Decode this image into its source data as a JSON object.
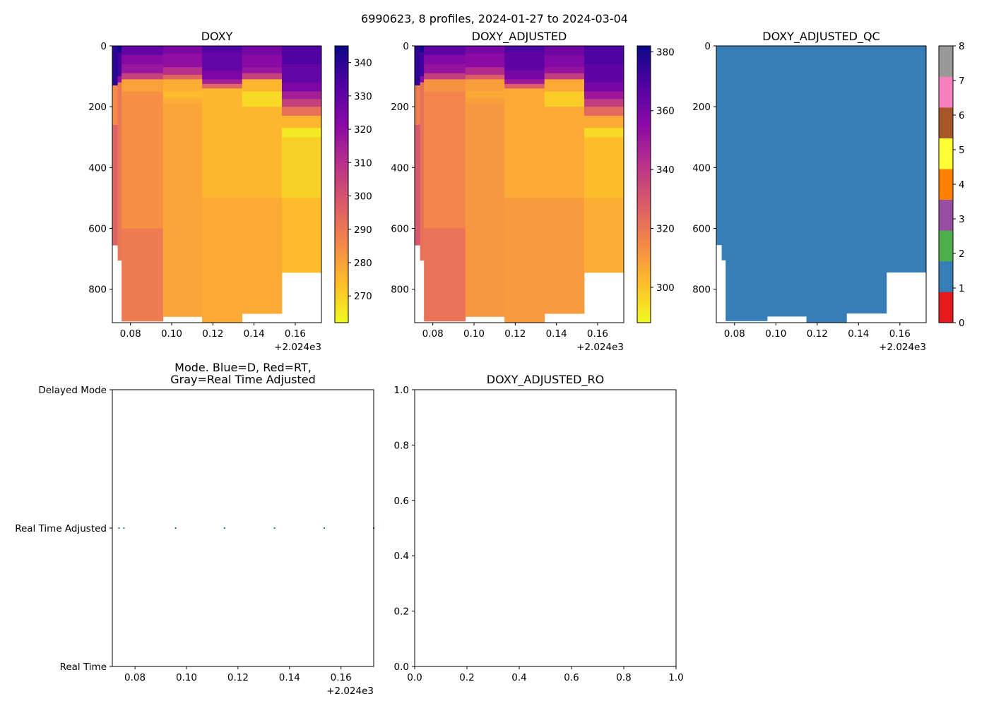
{
  "suptitle": "6990623, 8 profiles, 2024-01-27 to 2024-03-04",
  "chart_data": [
    {
      "type": "heatmap",
      "title": "DOXY",
      "x_offset_label": "+2.024e3",
      "xlim": [
        0.0712,
        0.1727
      ],
      "ylim": [
        910,
        0
      ],
      "x_ticks": [
        "0.08",
        "0.10",
        "0.12",
        "0.14",
        "0.16"
      ],
      "y_ticks": [
        "0",
        "200",
        "400",
        "600",
        "800"
      ],
      "colormap": "plasma_r",
      "clim": [
        262,
        345
      ],
      "colorbar_ticks": [
        "270",
        "280",
        "290",
        "300",
        "310",
        "320",
        "330",
        "340"
      ],
      "colorbar_tick_values": [
        270,
        280,
        290,
        300,
        310,
        320,
        330,
        340
      ],
      "profiles": [
        {
          "x": [
            0.0712,
            0.0738
          ],
          "max_depth": 655,
          "segments": [
            [
              0,
              130,
              340
            ],
            [
              130,
              260,
              285
            ],
            [
              260,
              655,
              296
            ]
          ]
        },
        {
          "x": [
            0.0738,
            0.0757
          ],
          "max_depth": 705,
          "segments": [
            [
              0,
              20,
              345
            ],
            [
              20,
              100,
              336
            ],
            [
              100,
              120,
              320
            ],
            [
              120,
              705,
              290
            ]
          ]
        },
        {
          "x": [
            0.0757,
            0.0958
          ],
          "max_depth": 905,
          "segments": [
            [
              0,
              30,
              330
            ],
            [
              30,
              60,
              322
            ],
            [
              60,
              90,
              318
            ],
            [
              90,
              110,
              305
            ],
            [
              110,
              150,
              280
            ],
            [
              150,
              600,
              284
            ],
            [
              600,
              905,
              289
            ]
          ]
        },
        {
          "x": [
            0.0958,
            0.1148
          ],
          "max_depth": 890,
          "segments": [
            [
              0,
              25,
              325
            ],
            [
              25,
              70,
              320
            ],
            [
              70,
              95,
              310
            ],
            [
              95,
              110,
              295
            ],
            [
              110,
              150,
              277
            ],
            [
              150,
              170,
              274
            ],
            [
              170,
              190,
              277
            ],
            [
              190,
              890,
              279
            ]
          ]
        },
        {
          "x": [
            0.1148,
            0.1342
          ],
          "max_depth": 910,
          "segments": [
            [
              0,
              20,
              334
            ],
            [
              20,
              80,
              330
            ],
            [
              80,
              110,
              325
            ],
            [
              110,
              125,
              315
            ],
            [
              125,
              140,
              295
            ],
            [
              140,
              500,
              275
            ],
            [
              500,
              910,
              278
            ]
          ]
        },
        {
          "x": [
            0.1342,
            0.1535
          ],
          "max_depth": 880,
          "segments": [
            [
              0,
              30,
              326
            ],
            [
              30,
              70,
              322
            ],
            [
              70,
              90,
              318
            ],
            [
              90,
              110,
              305
            ],
            [
              110,
              150,
              275
            ],
            [
              150,
              200,
              268
            ],
            [
              200,
              500,
              275
            ],
            [
              500,
              880,
              278
            ]
          ]
        },
        {
          "x": [
            0.1535,
            0.1727
          ],
          "max_depth": 745,
          "segments": [
            [
              0,
              60,
              334
            ],
            [
              60,
              120,
              330
            ],
            [
              120,
              150,
              325
            ],
            [
              150,
              175,
              315
            ],
            [
              175,
              200,
              305
            ],
            [
              200,
              230,
              292
            ],
            [
              230,
              270,
              275
            ],
            [
              270,
              300,
              265
            ],
            [
              300,
              500,
              270
            ],
            [
              500,
              745,
              274
            ]
          ]
        }
      ]
    },
    {
      "type": "heatmap",
      "title": "DOXY_ADJUSTED",
      "x_offset_label": "+2.024e3",
      "xlim": [
        0.0712,
        0.1727
      ],
      "ylim": [
        910,
        0
      ],
      "x_ticks": [
        "0.08",
        "0.10",
        "0.12",
        "0.14",
        "0.16"
      ],
      "y_ticks": [
        "0",
        "200",
        "400",
        "600",
        "800"
      ],
      "colormap": "plasma_r",
      "clim": [
        288,
        382
      ],
      "colorbar_ticks": [
        "300",
        "320",
        "340",
        "360",
        "380"
      ],
      "colorbar_tick_values": [
        300,
        320,
        340,
        360,
        380
      ],
      "profiles": [
        {
          "x": [
            0.0712,
            0.0738
          ],
          "max_depth": 655,
          "segments": [
            [
              0,
              130,
              376
            ],
            [
              130,
              260,
              318
            ],
            [
              260,
              655,
              330
            ]
          ]
        },
        {
          "x": [
            0.0738,
            0.0757
          ],
          "max_depth": 705,
          "segments": [
            [
              0,
              20,
              382
            ],
            [
              20,
              100,
              372
            ],
            [
              100,
              120,
              355
            ],
            [
              120,
              705,
              322
            ]
          ]
        },
        {
          "x": [
            0.0757,
            0.0958
          ],
          "max_depth": 905,
          "segments": [
            [
              0,
              30,
              366
            ],
            [
              30,
              60,
              357
            ],
            [
              60,
              90,
              352
            ],
            [
              90,
              110,
              338
            ],
            [
              110,
              150,
              312
            ],
            [
              150,
              600,
              316
            ],
            [
              600,
              905,
              321
            ]
          ]
        },
        {
          "x": [
            0.0958,
            0.1148
          ],
          "max_depth": 890,
          "segments": [
            [
              0,
              25,
              360
            ],
            [
              25,
              70,
              355
            ],
            [
              70,
              95,
              344
            ],
            [
              95,
              110,
              328
            ],
            [
              110,
              150,
              309
            ],
            [
              150,
              170,
              306
            ],
            [
              170,
              190,
              309
            ],
            [
              190,
              890,
              311
            ]
          ]
        },
        {
          "x": [
            0.1148,
            0.1342
          ],
          "max_depth": 910,
          "segments": [
            [
              0,
              20,
              370
            ],
            [
              20,
              80,
              366
            ],
            [
              80,
              110,
              360
            ],
            [
              110,
              125,
              350
            ],
            [
              125,
              140,
              328
            ],
            [
              140,
              500,
              306
            ],
            [
              500,
              910,
              310
            ]
          ]
        },
        {
          "x": [
            0.1342,
            0.1535
          ],
          "max_depth": 880,
          "segments": [
            [
              0,
              30,
              362
            ],
            [
              30,
              70,
              357
            ],
            [
              70,
              90,
              352
            ],
            [
              90,
              110,
              338
            ],
            [
              110,
              150,
              306
            ],
            [
              150,
              200,
              298
            ],
            [
              200,
              500,
              306
            ],
            [
              500,
              880,
              310
            ]
          ]
        },
        {
          "x": [
            0.1535,
            0.1727
          ],
          "max_depth": 745,
          "segments": [
            [
              0,
              60,
              370
            ],
            [
              60,
              120,
              366
            ],
            [
              120,
              150,
              360
            ],
            [
              150,
              175,
              350
            ],
            [
              175,
              200,
              338
            ],
            [
              200,
              230,
              324
            ],
            [
              230,
              270,
              306
            ],
            [
              270,
              300,
              295
            ],
            [
              300,
              500,
              301
            ],
            [
              500,
              745,
              305
            ]
          ]
        }
      ]
    },
    {
      "type": "heatmap",
      "title": "DOXY_ADJUSTED_QC",
      "x_offset_label": "+2.024e3",
      "xlim": [
        0.0712,
        0.1727
      ],
      "ylim": [
        910,
        0
      ],
      "x_ticks": [
        "0.08",
        "0.10",
        "0.12",
        "0.14",
        "0.16"
      ],
      "y_ticks": [
        "0",
        "200",
        "400",
        "600",
        "800"
      ],
      "colormap": "Set1 (categorical)",
      "clim": [
        0,
        8
      ],
      "colorbar_ticks": [
        "0",
        "1",
        "2",
        "3",
        "4",
        "5",
        "6",
        "7",
        "8"
      ],
      "colorbar_tick_values": [
        0,
        1,
        2,
        3,
        4,
        5,
        6,
        7,
        8
      ],
      "qc_colors": [
        "#e41a1c",
        "#377eb8",
        "#4daf4a",
        "#984ea3",
        "#ff7f00",
        "#ffff33",
        "#a65628",
        "#f781bf",
        "#999999"
      ],
      "profiles": [
        {
          "x": [
            0.0712,
            0.0738
          ],
          "max_depth": 655,
          "qc": 1
        },
        {
          "x": [
            0.0738,
            0.0757
          ],
          "max_depth": 705,
          "qc": 1
        },
        {
          "x": [
            0.0757,
            0.0958
          ],
          "max_depth": 905,
          "qc": 1
        },
        {
          "x": [
            0.0958,
            0.1148
          ],
          "max_depth": 890,
          "qc": 1
        },
        {
          "x": [
            0.1148,
            0.1342
          ],
          "max_depth": 910,
          "qc": 1
        },
        {
          "x": [
            0.1342,
            0.1535
          ],
          "max_depth": 880,
          "qc": 1
        },
        {
          "x": [
            0.1535,
            0.1727
          ],
          "max_depth": 745,
          "qc": 1
        }
      ]
    },
    {
      "type": "scatter",
      "title": "Mode. Blue=D, Red=RT,\nGray=Real Time Adjusted",
      "title_lines": [
        "Mode. Blue=D, Red=RT,",
        "Gray=Real Time Adjusted"
      ],
      "x_offset_label": "+2.024e3",
      "xlim": [
        0.0712,
        0.1727
      ],
      "x_ticks": [
        "0.08",
        "0.10",
        "0.12",
        "0.14",
        "0.16"
      ],
      "y_categories": [
        "Real Time",
        "Real Time Adjusted",
        "Delayed Mode"
      ],
      "point_color": "#1f77b4",
      "points": [
        {
          "x": 0.0738,
          "y": "Real Time Adjusted"
        },
        {
          "x": 0.0757,
          "y": "Real Time Adjusted"
        },
        {
          "x": 0.0958,
          "y": "Real Time Adjusted"
        },
        {
          "x": 0.1148,
          "y": "Real Time Adjusted"
        },
        {
          "x": 0.1342,
          "y": "Real Time Adjusted"
        },
        {
          "x": 0.1535,
          "y": "Real Time Adjusted"
        },
        {
          "x": 0.1727,
          "y": "Real Time Adjusted"
        }
      ]
    },
    {
      "type": "scatter",
      "title": "DOXY_ADJUSTED_RO",
      "xlim": [
        0,
        1
      ],
      "ylim": [
        0,
        1
      ],
      "x_ticks": [
        "0.0",
        "0.2",
        "0.4",
        "0.6",
        "0.8",
        "1.0"
      ],
      "y_ticks": [
        "0.0",
        "0.2",
        "0.4",
        "0.6",
        "0.8",
        "1.0"
      ],
      "points": []
    }
  ]
}
